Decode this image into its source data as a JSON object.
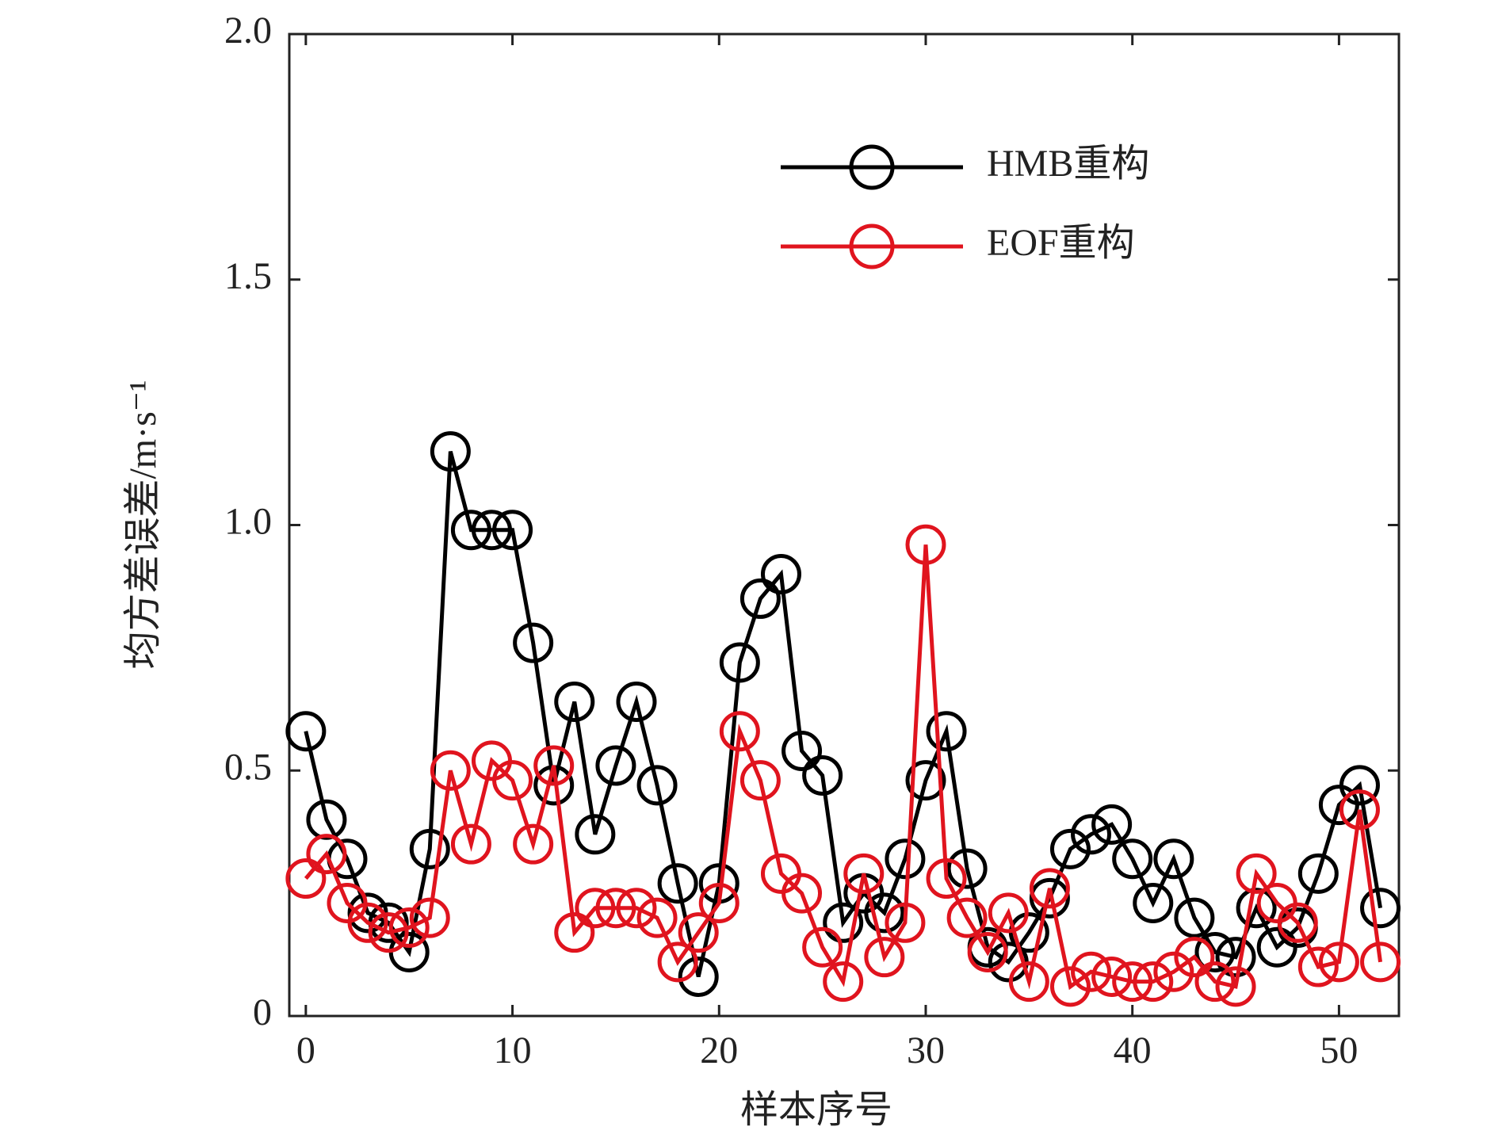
{
  "chart_data": {
    "type": "line",
    "xlabel": "样本序号",
    "ylabel": "均方差误差/m·s⁻¹",
    "x": [
      0,
      1,
      2,
      3,
      4,
      5,
      6,
      7,
      8,
      9,
      10,
      11,
      12,
      13,
      14,
      15,
      16,
      17,
      18,
      19,
      20,
      21,
      22,
      23,
      24,
      25,
      26,
      27,
      28,
      29,
      30,
      31,
      32,
      33,
      34,
      35,
      36,
      37,
      38,
      39,
      40,
      41,
      42,
      43,
      44,
      45,
      46,
      47,
      48,
      49,
      50,
      51,
      52
    ],
    "series": [
      {
        "name": "HMB重构",
        "color": "#000000",
        "values": [
          0.58,
          0.4,
          0.32,
          0.21,
          0.19,
          0.13,
          0.34,
          1.15,
          0.99,
          0.99,
          0.99,
          0.76,
          0.47,
          0.64,
          0.37,
          0.51,
          0.64,
          0.47,
          0.27,
          0.08,
          0.27,
          0.72,
          0.85,
          0.9,
          0.54,
          0.49,
          0.19,
          0.25,
          0.21,
          0.32,
          0.48,
          0.58,
          0.3,
          0.14,
          0.11,
          0.17,
          0.24,
          0.34,
          0.37,
          0.39,
          0.32,
          0.23,
          0.32,
          0.2,
          0.13,
          0.12,
          0.22,
          0.14,
          0.18,
          0.29,
          0.43,
          0.47,
          0.22
        ]
      },
      {
        "name": "EOF重构",
        "color": "#e0141e",
        "values": [
          0.28,
          0.33,
          0.23,
          0.19,
          0.17,
          0.18,
          0.2,
          0.5,
          0.35,
          0.52,
          0.48,
          0.35,
          0.51,
          0.17,
          0.22,
          0.22,
          0.22,
          0.2,
          0.11,
          0.17,
          0.23,
          0.58,
          0.48,
          0.29,
          0.25,
          0.14,
          0.07,
          0.29,
          0.12,
          0.19,
          0.96,
          0.28,
          0.2,
          0.13,
          0.21,
          0.07,
          0.26,
          0.06,
          0.09,
          0.08,
          0.07,
          0.07,
          0.09,
          0.12,
          0.07,
          0.06,
          0.29,
          0.23,
          0.19,
          0.1,
          0.11,
          0.42,
          0.11
        ]
      }
    ],
    "xlim": [
      -0.8,
      52.9
    ],
    "xticks": [
      0,
      10,
      20,
      30,
      40,
      50
    ],
    "ylim": [
      0,
      2
    ],
    "yticks": [
      0,
      0.5,
      {
        "value": 1,
        "label": "1.0"
      },
      1.5,
      {
        "value": 2,
        "label": "2.0"
      }
    ],
    "legend": "upper right"
  }
}
